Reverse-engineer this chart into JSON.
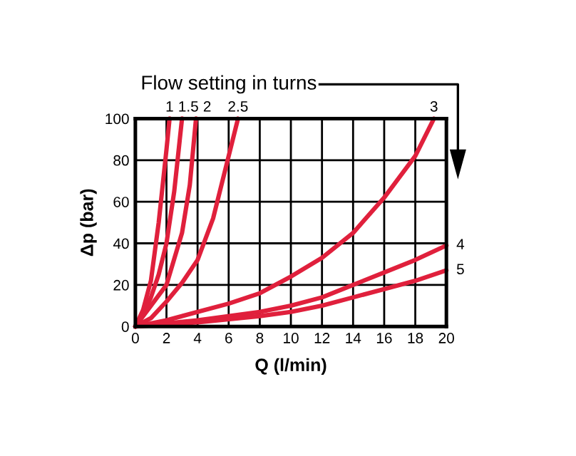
{
  "chart_data": {
    "type": "line",
    "title": "Flow setting in turns",
    "xlabel": "Q (l/min)",
    "ylabel": "Δp (bar)",
    "xlim": [
      0,
      20
    ],
    "ylim": [
      0,
      100
    ],
    "xticks": [
      0,
      2,
      4,
      6,
      8,
      10,
      12,
      14,
      16,
      18,
      20
    ],
    "yticks": [
      0,
      20,
      40,
      60,
      80,
      100
    ],
    "grid": true,
    "marker": "none",
    "line_style": "solid",
    "legend": false,
    "series": [
      {
        "name": "1",
        "color": "#e0203c",
        "x": [
          0,
          0.5,
          1,
          1.5,
          2,
          2.2
        ],
        "values": [
          0,
          8,
          22,
          50,
          85,
          100
        ]
      },
      {
        "name": "1.5",
        "color": "#e0203c",
        "x": [
          0,
          0.5,
          1,
          1.5,
          2,
          2.5,
          3.0
        ],
        "values": [
          0,
          6,
          14,
          25,
          40,
          65,
          100
        ]
      },
      {
        "name": "2",
        "color": "#e0203c",
        "x": [
          0,
          1,
          2,
          3,
          3.5,
          3.9
        ],
        "values": [
          0,
          10,
          20,
          45,
          68,
          100
        ]
      },
      {
        "name": "2.5",
        "color": "#e0203c",
        "x": [
          0,
          1,
          2,
          3,
          4,
          5,
          6,
          6.6
        ],
        "values": [
          0,
          4,
          12,
          21,
          32,
          52,
          82,
          100
        ]
      },
      {
        "name": "3",
        "color": "#e0203c",
        "x": [
          0,
          2,
          4,
          6,
          8,
          10,
          12,
          14,
          16,
          18,
          19.2
        ],
        "values": [
          0,
          3,
          7,
          11,
          16,
          24,
          33,
          45,
          62,
          82,
          100
        ]
      },
      {
        "name": "4",
        "color": "#e0203c",
        "x": [
          0,
          4,
          8,
          10,
          12,
          14,
          16,
          18,
          20
        ],
        "values": [
          0,
          3,
          7,
          10,
          14,
          20,
          26,
          32,
          39
        ]
      },
      {
        "name": "5",
        "color": "#e0203c",
        "x": [
          0,
          4,
          8,
          10,
          12,
          14,
          16,
          18,
          20
        ],
        "values": [
          0,
          2,
          5,
          7,
          10,
          14,
          18,
          22,
          27
        ]
      }
    ]
  }
}
